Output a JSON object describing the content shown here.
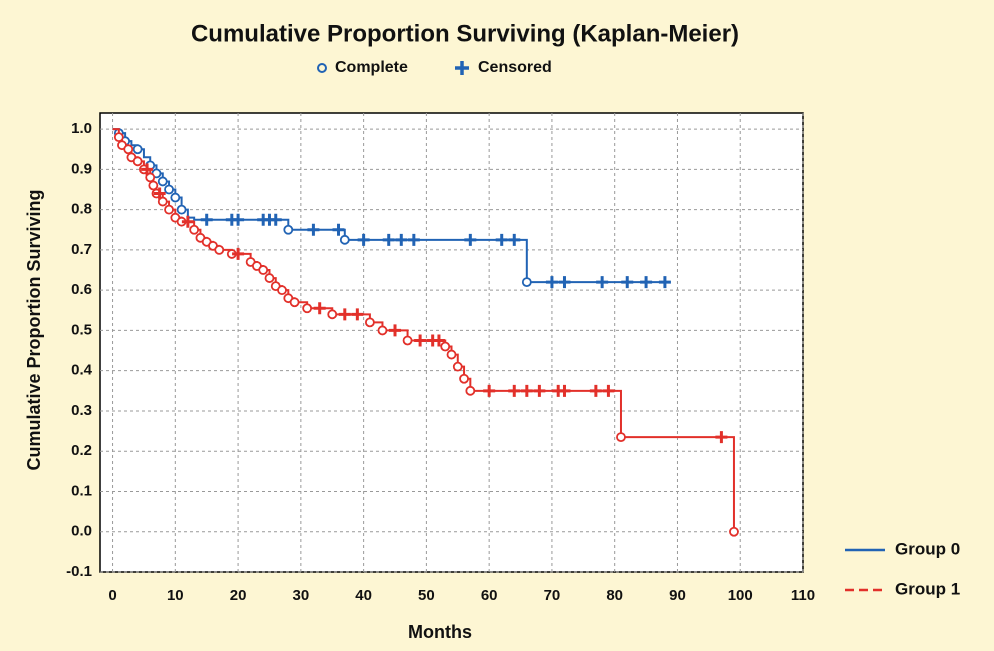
{
  "chart_data": {
    "type": "kaplan-meier",
    "title": "Cumulative Proportion Surviving (Kaplan-Meier)",
    "marker_legend": {
      "complete": "Complete",
      "censored": "Censored",
      "color": "#2163b4"
    },
    "x_label": "Months",
    "y_label": "Cumulative Proportion Surviving",
    "xlim": [
      -2,
      110
    ],
    "ylim": [
      -0.1,
      1.04
    ],
    "xticks": [
      0,
      10,
      20,
      30,
      40,
      50,
      60,
      70,
      80,
      90,
      100,
      110
    ],
    "yticks": [
      {
        "value": 1,
        "label": "1.0"
      },
      0.9,
      0.8,
      0.7,
      0.6,
      0.5,
      0.4,
      0.3,
      0.2,
      0.1,
      {
        "value": 0,
        "label": "0.0"
      },
      -0.1
    ],
    "grid": true,
    "series": [
      {
        "name": "Group 0",
        "color": "#2163b4",
        "dash": false,
        "x": [
          0,
          1,
          2,
          3,
          4,
          5,
          6,
          7,
          8,
          9,
          10,
          11,
          12,
          13,
          28,
          37,
          66,
          88
        ],
        "values": [
          1,
          0.99,
          0.97,
          0.96,
          0.95,
          0.93,
          0.91,
          0.89,
          0.87,
          0.85,
          0.83,
          0.8,
          0.78,
          0.775,
          0.75,
          0.725,
          0.62,
          0.62
        ],
        "complete_x": [
          1,
          2,
          4,
          6,
          7,
          8,
          9,
          10,
          11,
          28,
          37,
          66
        ],
        "complete_values": [
          0.99,
          0.97,
          0.95,
          0.91,
          0.89,
          0.87,
          0.85,
          0.83,
          0.8,
          0.75,
          0.725,
          0.62
        ],
        "censored_x": [
          15,
          19,
          20,
          24,
          25,
          26,
          32,
          36,
          40,
          44,
          46,
          48,
          57,
          62,
          64,
          70,
          72,
          78,
          82,
          85,
          88
        ],
        "censored_values": [
          0.775,
          0.775,
          0.775,
          0.775,
          0.775,
          0.775,
          0.75,
          0.75,
          0.725,
          0.725,
          0.725,
          0.725,
          0.725,
          0.725,
          0.725,
          0.62,
          0.62,
          0.62,
          0.62,
          0.62,
          0.62
        ]
      },
      {
        "name": "Group 1",
        "color": "#e2302a",
        "dash": true,
        "x": [
          0,
          1,
          1.5,
          2.5,
          3,
          4,
          5,
          6,
          6.5,
          7,
          8,
          9,
          10,
          11,
          13,
          14,
          15,
          16,
          17,
          19,
          22,
          23,
          24,
          25,
          26,
          27,
          28,
          29,
          31,
          35,
          41,
          43,
          47,
          53,
          54,
          55,
          56,
          57,
          81,
          99
        ],
        "values": [
          1,
          0.98,
          0.96,
          0.95,
          0.93,
          0.92,
          0.9,
          0.88,
          0.86,
          0.84,
          0.82,
          0.8,
          0.78,
          0.77,
          0.75,
          0.73,
          0.72,
          0.71,
          0.7,
          0.69,
          0.67,
          0.66,
          0.65,
          0.63,
          0.61,
          0.6,
          0.58,
          0.57,
          0.555,
          0.54,
          0.52,
          0.5,
          0.475,
          0.46,
          0.44,
          0.41,
          0.38,
          0.35,
          0.235,
          0
        ],
        "complete_x": [
          1,
          1.5,
          2.5,
          3,
          4,
          5,
          6,
          6.5,
          7,
          8,
          9,
          10,
          11,
          13,
          14,
          15,
          16,
          17,
          19,
          22,
          23,
          24,
          25,
          26,
          27,
          28,
          29,
          31,
          35,
          41,
          43,
          47,
          53,
          54,
          55,
          56,
          57,
          81,
          99
        ],
        "complete_values": [
          0.98,
          0.96,
          0.95,
          0.93,
          0.92,
          0.9,
          0.88,
          0.86,
          0.84,
          0.82,
          0.8,
          0.78,
          0.77,
          0.75,
          0.73,
          0.72,
          0.71,
          0.7,
          0.69,
          0.67,
          0.66,
          0.65,
          0.63,
          0.61,
          0.6,
          0.58,
          0.57,
          0.555,
          0.54,
          0.52,
          0.5,
          0.475,
          0.46,
          0.44,
          0.41,
          0.38,
          0.35,
          0.235,
          0
        ],
        "censored_x": [
          5.5,
          7.5,
          12,
          20,
          33,
          37,
          39,
          45,
          49,
          51,
          52,
          60,
          64,
          66,
          68,
          71,
          72,
          77,
          79,
          97
        ],
        "censored_values": [
          0.9,
          0.84,
          0.77,
          0.69,
          0.555,
          0.54,
          0.54,
          0.5,
          0.475,
          0.475,
          0.475,
          0.35,
          0.35,
          0.35,
          0.35,
          0.35,
          0.35,
          0.35,
          0.35,
          0.235
        ]
      }
    ]
  }
}
